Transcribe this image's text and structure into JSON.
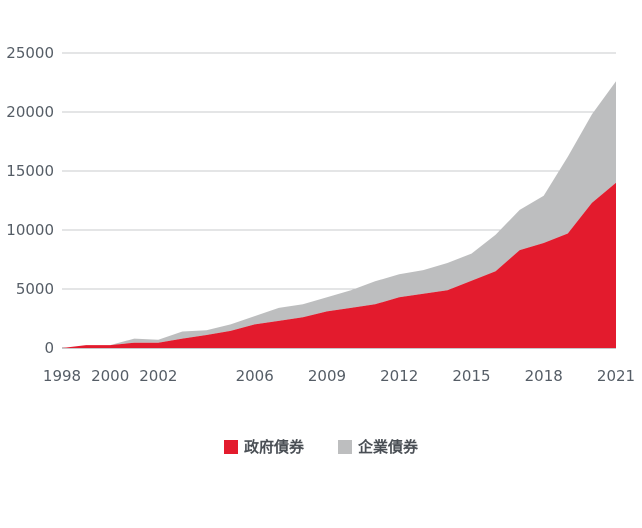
{
  "chart_data": {
    "type": "area",
    "stacked": true,
    "x": [
      1998,
      1999,
      2000,
      2001,
      2002,
      2003,
      2004,
      2005,
      2006,
      2007,
      2008,
      2009,
      2010,
      2011,
      2012,
      2013,
      2014,
      2015,
      2016,
      2017,
      2018,
      2019,
      2020,
      2021
    ],
    "series": [
      {
        "name": "政府債券",
        "color": "#e31b2d",
        "values": [
          0,
          250,
          250,
          450,
          450,
          800,
          1100,
          1450,
          2000,
          2300,
          2600,
          3100,
          3400,
          3700,
          4300,
          4600,
          4900,
          5700,
          6500,
          8300,
          8900,
          9700,
          12300,
          14000
        ]
      },
      {
        "name": "企業債券",
        "color": "#bdbebf",
        "values": [
          0,
          0,
          0,
          350,
          250,
          600,
          400,
          550,
          700,
          1100,
          1100,
          1200,
          1500,
          1950,
          1950,
          2000,
          2300,
          2300,
          3100,
          3400,
          4000,
          6500,
          7500,
          8600
        ]
      }
    ],
    "xticks": [
      "1998",
      "2000",
      "2002",
      "2006",
      "2009",
      "2012",
      "2015",
      "2018",
      "2021"
    ],
    "yticks": [
      "0",
      "5000",
      "10000",
      "15000",
      "20000",
      "25000"
    ],
    "xlim": [
      1998,
      2021
    ],
    "ylim": [
      0,
      25000
    ],
    "grid": "horizontal",
    "legend_position": "bottom-center"
  },
  "legend": {
    "items": [
      {
        "label": "政府債券",
        "color": "#e31b2d"
      },
      {
        "label": "企業債券",
        "color": "#bdbebf"
      }
    ]
  }
}
